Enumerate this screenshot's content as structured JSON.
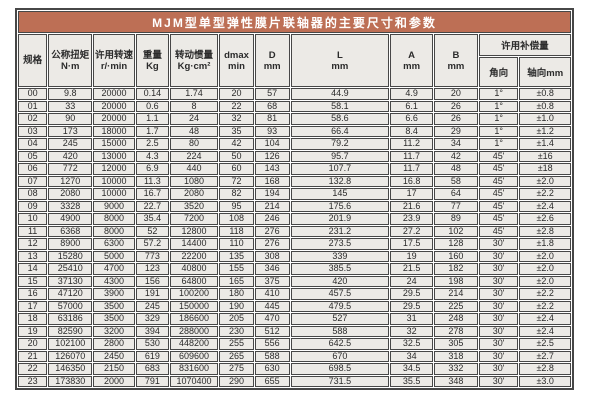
{
  "colors": {
    "title_bg": "#bd6f55",
    "title_text": "#ffffff",
    "cell_bg": "#eceae6",
    "border_color": "#474747"
  },
  "table": {
    "title": "MJM型单型弹性膜片联轴器的主要尺寸和参数",
    "column_keys": [
      "spec",
      "torque_nm",
      "speed_rpm",
      "weight_kg",
      "inertia_kgcm2",
      "dmax_min",
      "d_mm",
      "l_mm",
      "a_mm",
      "b_mm",
      "angular",
      "axial_mm"
    ],
    "columns": [
      {
        "key": "spec",
        "line1": "规格",
        "line2": ""
      },
      {
        "key": "torque_nm",
        "line1": "公称扭矩",
        "line2": "N·m"
      },
      {
        "key": "speed_rpm",
        "line1": "许用转速",
        "line2": "r/·min"
      },
      {
        "key": "weight_kg",
        "line1": "重量",
        "line2": "Kg"
      },
      {
        "key": "inertia_kgcm2",
        "line1": "转动惯量",
        "line2": "Kg·cm²"
      },
      {
        "key": "dmax_min",
        "line1": "dmax",
        "line2": "min"
      },
      {
        "key": "d_mm",
        "line1": "D",
        "line2": "mm"
      },
      {
        "key": "l_mm",
        "line1": "L",
        "line2": "mm"
      },
      {
        "key": "a_mm",
        "line1": "A",
        "line2": "mm"
      },
      {
        "key": "b_mm",
        "line1": "B",
        "line2": "mm"
      }
    ],
    "compensation": {
      "title": "许用补偿量",
      "angular": "角向",
      "axial": "轴向mm"
    },
    "rows": [
      [
        "00",
        "9.8",
        "20000",
        "0.14",
        "1.74",
        "20",
        "57",
        "44.9",
        "4.9",
        "20",
        "1°",
        "±0.8"
      ],
      [
        "01",
        "33",
        "20000",
        "0.6",
        "8",
        "22",
        "68",
        "58.1",
        "6.1",
        "26",
        "1°",
        "±0.8"
      ],
      [
        "02",
        "90",
        "20000",
        "1.1",
        "24",
        "32",
        "81",
        "58.6",
        "6.6",
        "26",
        "1°",
        "±1.0"
      ],
      [
        "03",
        "173",
        "18000",
        "1.7",
        "48",
        "35",
        "93",
        "66.4",
        "8.4",
        "29",
        "1°",
        "±1.2"
      ],
      [
        "04",
        "245",
        "15000",
        "2.5",
        "80",
        "42",
        "104",
        "79.2",
        "11.2",
        "34",
        "1°",
        "±1.4"
      ],
      [
        "05",
        "420",
        "13000",
        "4.3",
        "224",
        "50",
        "126",
        "95.7",
        "11.7",
        "42",
        "45'",
        "±16"
      ],
      [
        "06",
        "772",
        "12000",
        "6.9",
        "440",
        "60",
        "143",
        "107.7",
        "11.7",
        "48",
        "45'",
        "±18"
      ],
      [
        "07",
        "1270",
        "10000",
        "11.3",
        "1080",
        "72",
        "168",
        "132.8",
        "16.8",
        "58",
        "45'",
        "±2.0"
      ],
      [
        "08",
        "2080",
        "10000",
        "16.7",
        "2080",
        "82",
        "194",
        "145",
        "17",
        "64",
        "45'",
        "±2.2"
      ],
      [
        "09",
        "3328",
        "9000",
        "22.7",
        "3520",
        "95",
        "214",
        "175.6",
        "21.6",
        "77",
        "45'",
        "±2.4"
      ],
      [
        "10",
        "4900",
        "8000",
        "35.4",
        "7200",
        "108",
        "246",
        "201.9",
        "23.9",
        "89",
        "45'",
        "±2.6"
      ],
      [
        "11",
        "6368",
        "8000",
        "52",
        "12800",
        "118",
        "276",
        "231.2",
        "27.2",
        "102",
        "45'",
        "±2.8"
      ],
      [
        "12",
        "8900",
        "6300",
        "57.2",
        "14400",
        "110",
        "276",
        "273.5",
        "17.5",
        "128",
        "30'",
        "±1.8"
      ],
      [
        "13",
        "15280",
        "5000",
        "773",
        "22200",
        "135",
        "308",
        "339",
        "19",
        "160",
        "30'",
        "±2.0"
      ],
      [
        "14",
        "25410",
        "4700",
        "123",
        "40800",
        "155",
        "346",
        "385.5",
        "21.5",
        "182",
        "30'",
        "±2.0"
      ],
      [
        "15",
        "37130",
        "4300",
        "156",
        "64800",
        "165",
        "375",
        "420",
        "24",
        "198",
        "30'",
        "±2.0"
      ],
      [
        "16",
        "47120",
        "3900",
        "191",
        "100200",
        "180",
        "410",
        "457.5",
        "29.5",
        "214",
        "30'",
        "±2.2"
      ],
      [
        "17",
        "57000",
        "3500",
        "245",
        "150000",
        "190",
        "445",
        "479.5",
        "29.5",
        "225",
        "30'",
        "±2.2"
      ],
      [
        "18",
        "63186",
        "3500",
        "329",
        "186600",
        "205",
        "470",
        "527",
        "31",
        "248",
        "30'",
        "±2.4"
      ],
      [
        "19",
        "82590",
        "3200",
        "394",
        "288000",
        "230",
        "512",
        "588",
        "32",
        "278",
        "30'",
        "±2.4"
      ],
      [
        "20",
        "102100",
        "2800",
        "530",
        "448200",
        "255",
        "556",
        "642.5",
        "32.5",
        "305",
        "30'",
        "±2.5"
      ],
      [
        "21",
        "126070",
        "2450",
        "619",
        "609600",
        "265",
        "588",
        "670",
        "34",
        "318",
        "30'",
        "±2.7"
      ],
      [
        "22",
        "146350",
        "2150",
        "683",
        "831600",
        "275",
        "630",
        "698.5",
        "34.5",
        "332",
        "30'",
        "±2.8"
      ],
      [
        "23",
        "173830",
        "2000",
        "791",
        "1070400",
        "290",
        "655",
        "731.5",
        "35.5",
        "348",
        "30'",
        "±3.0"
      ]
    ]
  }
}
